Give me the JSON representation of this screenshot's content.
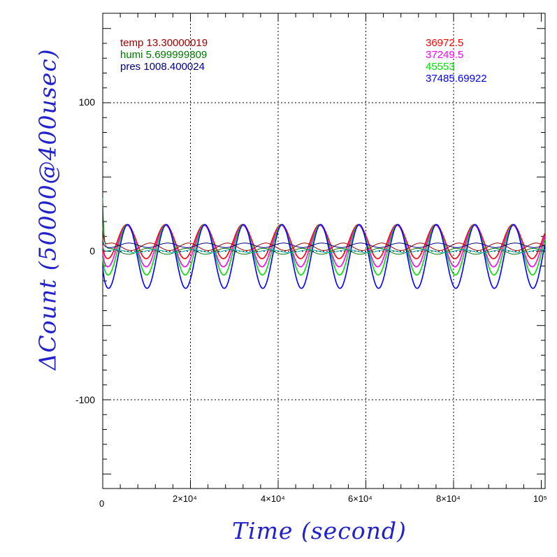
{
  "chart_data": {
    "type": "line",
    "xlabel": "Time (second)",
    "ylabel": "ΔCount (50000@400usec)",
    "xlim": [
      0,
      100000
    ],
    "ylim": [
      -160,
      160
    ],
    "grid": true,
    "x_ticks": [
      "0",
      "2×10⁴",
      "4×10⁴",
      "6×10⁴",
      "8×10⁴",
      "10⁵"
    ],
    "y_ticks": [
      "100",
      "0",
      "-100"
    ],
    "legend_left": [
      {
        "text": "temp 13.30000019",
        "color": "#990000"
      },
      {
        "text": "humi 5.699999809",
        "color": "#007700"
      },
      {
        "text": "pres 1008.400024",
        "color": "#000080"
      }
    ],
    "legend_right": [
      {
        "text": "36972.5",
        "color": "#ff0000"
      },
      {
        "text": "37249.5",
        "color": "#ff00ff"
      },
      {
        "text": "45553",
        "color": "#00dd00"
      },
      {
        "text": "37485.69922",
        "color": "#0000ff"
      }
    ],
    "period": 8800,
    "series": [
      {
        "color": "#ff0000",
        "center": 6.5,
        "amplitude": 11.5,
        "phase_x": 5500
      },
      {
        "color": "#ff00ff",
        "center": 3.5,
        "amplitude": 14,
        "phase_x": 5500
      },
      {
        "color": "#00dd00",
        "center": 1,
        "amplitude": 17,
        "phase_x": 5600
      },
      {
        "color": "#0000ff",
        "center": -3.5,
        "amplitude": 21.5,
        "phase_x": 5700
      },
      {
        "color": "#990000",
        "center": 3,
        "amplitude": 2.5,
        "phase_x": 2000
      },
      {
        "color": "#007700",
        "center": 0,
        "amplitude": 2,
        "phase_x": 1500
      },
      {
        "color": "#000080",
        "center": 4,
        "amplitude": 1.5,
        "phase_x": 6000
      },
      {
        "color": "#00aaaa",
        "center": 0,
        "amplitude": 1,
        "phase_x": 3000
      }
    ]
  }
}
